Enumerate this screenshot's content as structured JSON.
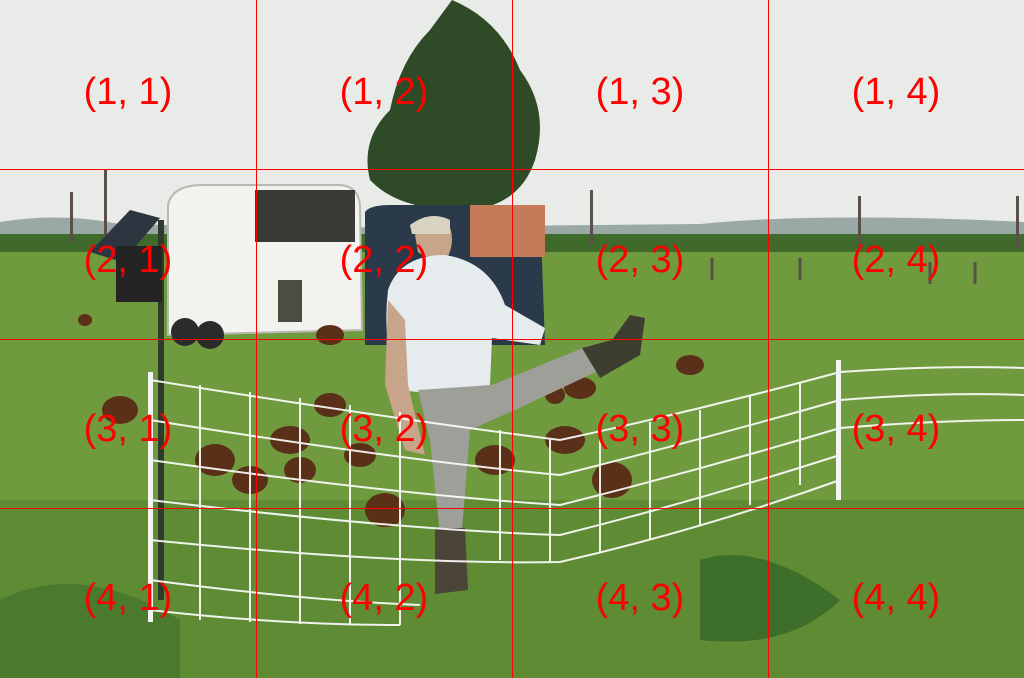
{
  "grid": {
    "rows": 4,
    "cols": 4,
    "labels": [
      [
        "(1, 1)",
        "(1, 2)",
        "(1, 3)",
        "(1, 4)"
      ],
      [
        "(2, 1)",
        "(2, 2)",
        "(2, 3)",
        "(2, 4)"
      ],
      [
        "(3, 1)",
        "(3, 2)",
        "(3, 3)",
        "(3, 4)"
      ],
      [
        "(4, 1)",
        "(4, 2)",
        "(4, 3)",
        "(4, 4)"
      ]
    ],
    "line_color": "#ff0000",
    "label_color": "#ff0000"
  },
  "scene": {
    "sky_color": "#e9ebe8",
    "grass_color": "#6f9a3e",
    "trailer_color": "#f2f2ee",
    "shirt_color": "#e6ebee",
    "pants_color": "#9d9f98",
    "fence_color": "#ffffff"
  }
}
